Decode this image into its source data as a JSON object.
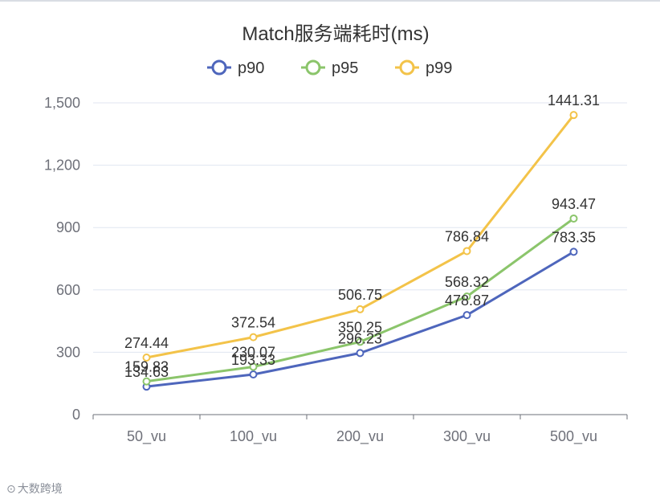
{
  "chart_data": {
    "type": "line",
    "title": "Match服务端耗时(ms)",
    "categories": [
      "50_vu",
      "100_vu",
      "200_vu",
      "300_vu",
      "500_vu"
    ],
    "ylim": [
      0,
      1500
    ],
    "yticks": [
      0,
      300,
      600,
      900,
      1200,
      1500
    ],
    "ytick_labels": [
      "0",
      "300",
      "600",
      "900",
      "1,200",
      "1,500"
    ],
    "grid": true,
    "legend_position": "top-center",
    "series": [
      {
        "name": "p90",
        "color": "#4e66bc",
        "values": [
          134.63,
          193.33,
          296.23,
          478.87,
          783.35
        ]
      },
      {
        "name": "p95",
        "color": "#8bc56b",
        "values": [
          159.83,
          230.07,
          350.25,
          568.32,
          943.47
        ]
      },
      {
        "name": "p99",
        "color": "#f3c349",
        "values": [
          274.44,
          372.54,
          506.75,
          786.84,
          1441.31
        ]
      }
    ]
  },
  "watermark": {
    "text": "大数跨境",
    "icon": "watermark-logo-icon"
  }
}
